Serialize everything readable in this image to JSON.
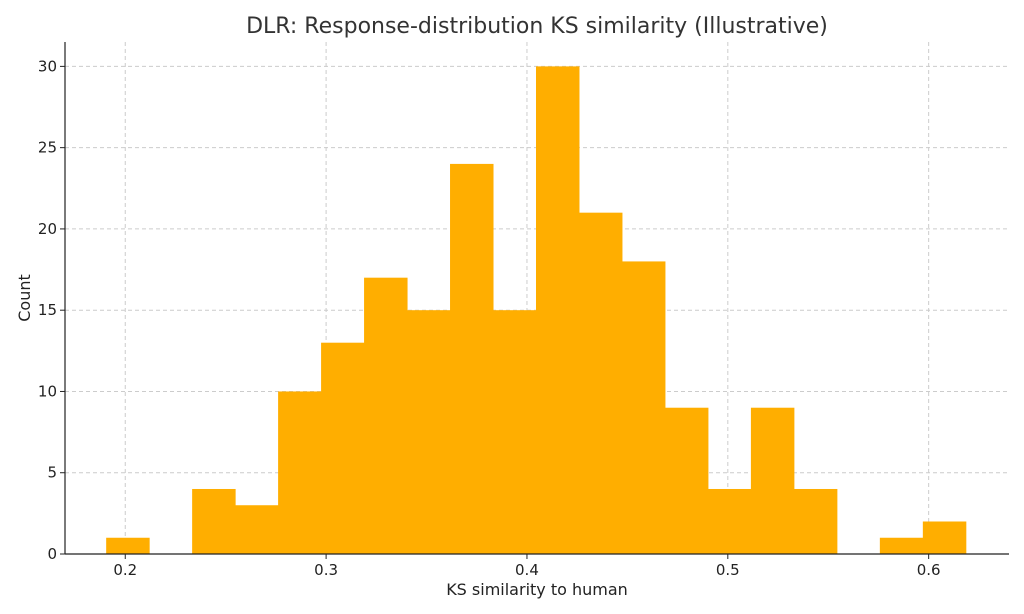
{
  "chart_data": {
    "type": "bar",
    "title": "DLR: Response-distribution KS similarity (Illustrative)",
    "xlabel": "KS similarity to human",
    "ylabel": "Count",
    "xlim": [
      0.17,
      0.64
    ],
    "ylim": [
      0,
      31.5
    ],
    "xticks": [
      0.2,
      0.3,
      0.4,
      0.5,
      0.6
    ],
    "xtick_labels": [
      "0.2",
      "0.3",
      "0.4",
      "0.5",
      "0.6"
    ],
    "yticks": [
      0,
      5,
      10,
      15,
      20,
      25,
      30
    ],
    "ytick_labels": [
      "0",
      "5",
      "10",
      "15",
      "20",
      "25",
      "30"
    ],
    "grid": true,
    "bar_color": "#ffae00",
    "bins": [
      {
        "x0": 0.1905,
        "x1": 0.2119,
        "count": 1
      },
      {
        "x0": 0.2119,
        "x1": 0.2333,
        "count": 0
      },
      {
        "x0": 0.2333,
        "x1": 0.2547,
        "count": 4
      },
      {
        "x0": 0.2547,
        "x1": 0.2761,
        "count": 3
      },
      {
        "x0": 0.2761,
        "x1": 0.2975,
        "count": 10
      },
      {
        "x0": 0.2975,
        "x1": 0.3189,
        "count": 13
      },
      {
        "x0": 0.3189,
        "x1": 0.3403,
        "count": 17
      },
      {
        "x0": 0.3403,
        "x1": 0.3617,
        "count": 15
      },
      {
        "x0": 0.3617,
        "x1": 0.3831,
        "count": 24
      },
      {
        "x0": 0.3831,
        "x1": 0.4045,
        "count": 15
      },
      {
        "x0": 0.4045,
        "x1": 0.4259,
        "count": 30
      },
      {
        "x0": 0.4259,
        "x1": 0.4473,
        "count": 21
      },
      {
        "x0": 0.4473,
        "x1": 0.4687,
        "count": 18
      },
      {
        "x0": 0.4687,
        "x1": 0.4901,
        "count": 9
      },
      {
        "x0": 0.4901,
        "x1": 0.5115,
        "count": 4
      },
      {
        "x0": 0.5115,
        "x1": 0.5329,
        "count": 9
      },
      {
        "x0": 0.5329,
        "x1": 0.5543,
        "count": 4
      },
      {
        "x0": 0.5543,
        "x1": 0.5757,
        "count": 0
      },
      {
        "x0": 0.5757,
        "x1": 0.5971,
        "count": 1
      },
      {
        "x0": 0.5971,
        "x1": 0.6185,
        "count": 2
      }
    ]
  }
}
